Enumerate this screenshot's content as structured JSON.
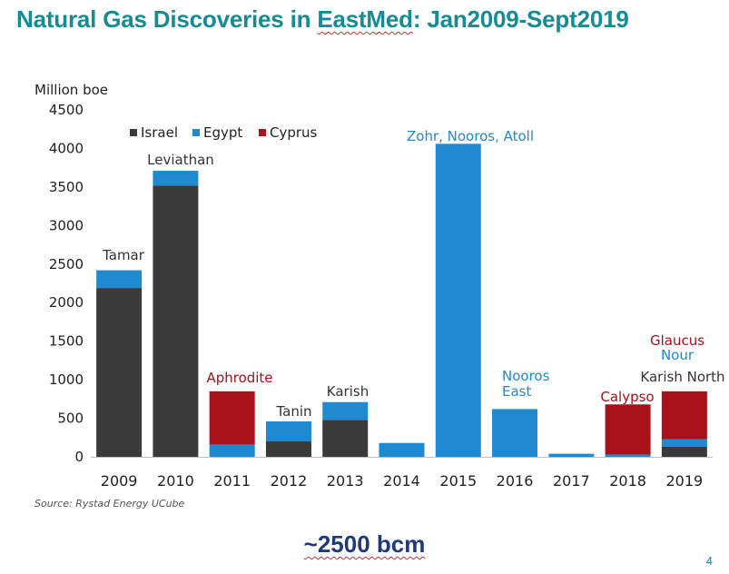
{
  "slide": {
    "title_parts": [
      "Natural Gas Discoveries in ",
      "EastMed",
      ": Jan2009-Sept2019"
    ],
    "footer": "~2500 bcm",
    "page_number": "4"
  },
  "colors": {
    "title": "#138c94",
    "Israel": "#3a3a3a",
    "Egypt": "#1f8ad0",
    "Cyprus": "#a8101a",
    "footer": "#1f3a78"
  },
  "chart_data": {
    "type": "bar",
    "stacked": true,
    "ylabel": "Million boe",
    "xlabel": "",
    "ylim": [
      0,
      4500
    ],
    "yticks": [
      0,
      500,
      1000,
      1500,
      2000,
      2500,
      3000,
      3500,
      4000,
      4500
    ],
    "categories": [
      "2009",
      "2010",
      "2011",
      "2012",
      "2013",
      "2014",
      "2015",
      "2016",
      "2017",
      "2018",
      "2019"
    ],
    "series": [
      {
        "name": "Israel",
        "values": [
          2190,
          3520,
          0,
          200,
          480,
          0,
          0,
          0,
          0,
          0,
          130
        ]
      },
      {
        "name": "Egypt",
        "values": [
          230,
          190,
          160,
          260,
          230,
          180,
          4060,
          620,
          40,
          30,
          100
        ]
      },
      {
        "name": "Cyprus",
        "values": [
          0,
          0,
          690,
          0,
          0,
          0,
          0,
          0,
          0,
          650,
          620
        ]
      }
    ],
    "legend": [
      "Israel",
      "Egypt",
      "Cyprus"
    ],
    "legend_position": "top-left",
    "annotations": [
      {
        "category": "2009",
        "lines": [
          "Tamar"
        ],
        "color": "#333333"
      },
      {
        "category": "2010",
        "lines": [
          "Leviathan"
        ],
        "color": "#333333"
      },
      {
        "category": "2011",
        "lines": [
          "Aphrodite"
        ],
        "color": "#a8101a"
      },
      {
        "category": "2012",
        "lines": [
          "Tanin"
        ],
        "color": "#333333"
      },
      {
        "category": "2013",
        "lines": [
          "Karish"
        ],
        "color": "#333333"
      },
      {
        "category": "2015",
        "lines": [
          "Zohr, Nooros, Atoll"
        ],
        "color": "#1f8ad0"
      },
      {
        "category": "2016",
        "lines": [
          "Nooros",
          "East"
        ],
        "color": "#1f8ad0"
      },
      {
        "category": "2018",
        "lines": [
          "Calypso"
        ],
        "color": "#a8101a"
      },
      {
        "category": "2019",
        "lines": [
          "Glaucus"
        ],
        "color": "#a8101a"
      },
      {
        "category": "2019",
        "lines": [
          "Nour"
        ],
        "color": "#1f8ad0"
      },
      {
        "category": "2019",
        "lines": [
          "Karish North"
        ],
        "color": "#333333"
      }
    ],
    "source": "Source: Rystad Energy UCube"
  }
}
